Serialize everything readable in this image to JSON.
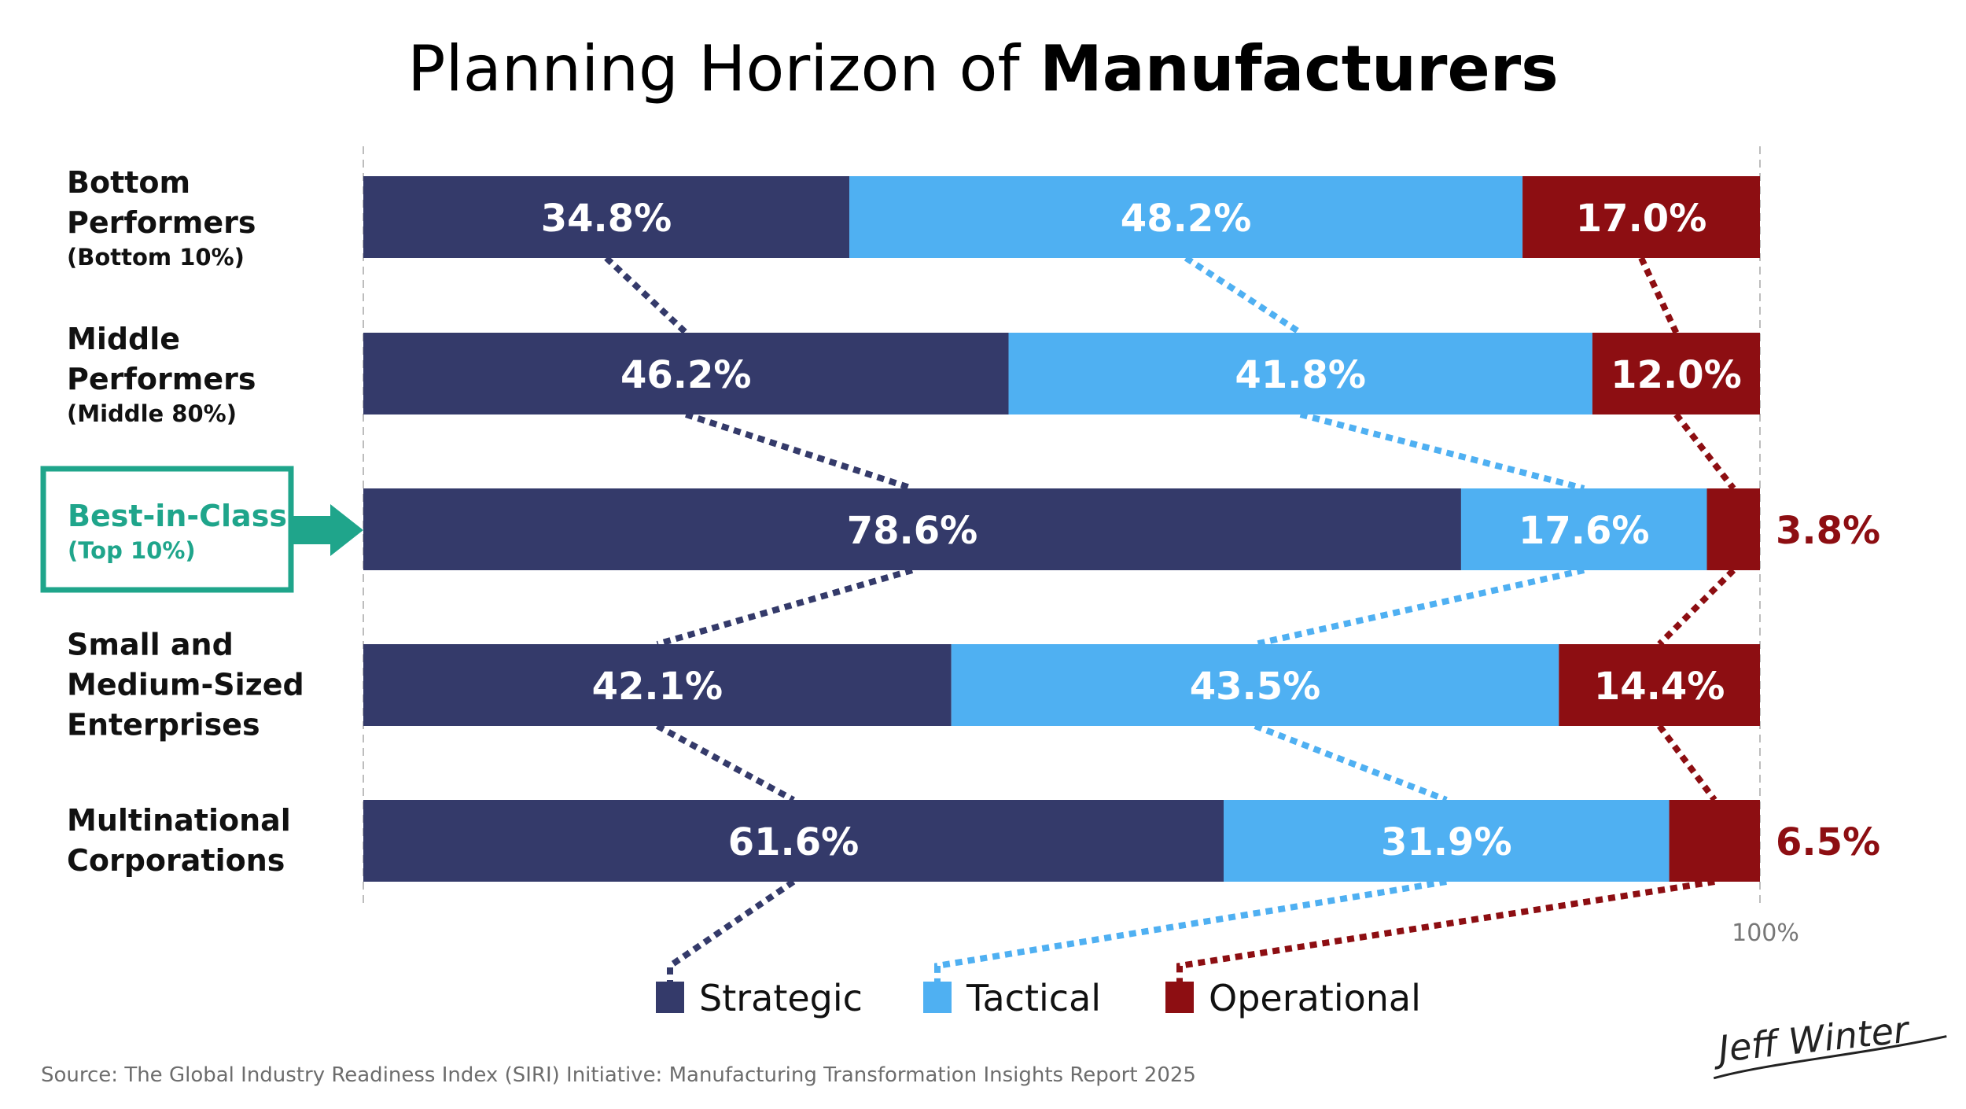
{
  "title": {
    "light": "Planning Horizon of ",
    "bold": "Manufacturers"
  },
  "source": "Source: The Global Industry Readiness Index (SIRI) Initiative: Manufacturing Transformation Insights Report 2025",
  "signature": "Jeff Winter",
  "colors": {
    "strategic": "#343a6a",
    "tactical": "#4fb0f2",
    "operational": "#8d0e12",
    "highlight": "#1fa58b",
    "gridline": "#bdbdbd",
    "text": "#111111",
    "source_text": "#6d6d6d"
  },
  "chart_data": {
    "type": "bar",
    "orientation": "horizontal",
    "stacked": true,
    "title": "Planning Horizon of Manufacturers",
    "xlim": [
      0,
      100
    ],
    "axis_end_label": "100%",
    "categories": [
      {
        "lines": [
          "Bottom",
          "Performers"
        ],
        "sub": "(Bottom 10%)",
        "highlight": false
      },
      {
        "lines": [
          "Middle",
          "Performers"
        ],
        "sub": "(Middle 80%)",
        "highlight": false
      },
      {
        "lines": [
          "Best-in-Class"
        ],
        "sub": "(Top 10%)",
        "highlight": true
      },
      {
        "lines": [
          "Small and",
          "Medium-Sized",
          "Enterprises"
        ],
        "sub": "",
        "highlight": false
      },
      {
        "lines": [
          "Multinational",
          "Corporations"
        ],
        "sub": "",
        "highlight": false
      }
    ],
    "series": [
      {
        "key": "strategic",
        "name": "Strategic",
        "values": [
          34.8,
          46.2,
          78.6,
          42.1,
          61.6
        ],
        "labels": [
          "34.8%",
          "46.2%",
          "78.6%",
          "42.1%",
          "61.6%"
        ]
      },
      {
        "key": "tactical",
        "name": "Tactical",
        "values": [
          48.2,
          41.8,
          17.6,
          43.5,
          31.9
        ],
        "labels": [
          "48.2%",
          "41.8%",
          "17.6%",
          "43.5%",
          "31.9%"
        ]
      },
      {
        "key": "operational",
        "name": "Operational",
        "values": [
          17.0,
          12.0,
          3.8,
          14.4,
          6.5
        ],
        "labels": [
          "17.0%",
          "12.0%",
          "3.8%",
          "14.4%",
          "6.5%"
        ]
      }
    ],
    "legend": {
      "position": "bottom-center",
      "items": [
        "Strategic",
        "Tactical",
        "Operational"
      ]
    }
  }
}
